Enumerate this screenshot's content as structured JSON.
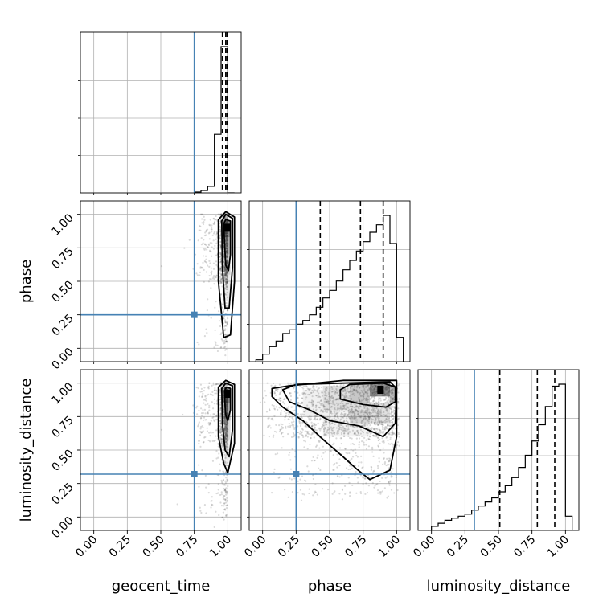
{
  "chart_data": {
    "type": "corner",
    "parameters": [
      "geocent_time",
      "phase",
      "luminosity_distance"
    ],
    "axis_range": [
      -0.1,
      1.1
    ],
    "ticks": [
      0.0,
      0.25,
      0.5,
      0.75,
      1.0
    ],
    "tick_labels": [
      "0.00",
      "0.25",
      "0.50",
      "0.75",
      "1.00"
    ],
    "grid": true,
    "truths": {
      "geocent_time": 0.75,
      "phase": 0.25,
      "luminosity_distance": 0.32
    },
    "truth_color": "#4682b4",
    "quantiles": {
      "geocent_time": [
        0.96,
        0.985,
        0.995
      ],
      "phase": [
        0.43,
        0.73,
        0.9
      ],
      "luminosity_distance": [
        0.51,
        0.79,
        0.92
      ]
    },
    "histograms": {
      "geocent_time": {
        "bin_edges": [
          0.75,
          0.8,
          0.85,
          0.9,
          0.95,
          1.0,
          1.05
        ],
        "counts": [
          0.005,
          0.015,
          0.04,
          0.36,
          0.9,
          0.0
        ]
      },
      "phase": {
        "bin_edges": [
          -0.05,
          0.0,
          0.05,
          0.1,
          0.15,
          0.2,
          0.25,
          0.3,
          0.35,
          0.4,
          0.45,
          0.5,
          0.55,
          0.6,
          0.65,
          0.7,
          0.75,
          0.8,
          0.85,
          0.9,
          0.95,
          1.0,
          1.05
        ],
        "counts": [
          0.01,
          0.04,
          0.08,
          0.11,
          0.15,
          0.17,
          0.2,
          0.22,
          0.25,
          0.29,
          0.34,
          0.38,
          0.43,
          0.49,
          0.54,
          0.59,
          0.64,
          0.69,
          0.73,
          0.78,
          0.63,
          0.13
        ]
      },
      "luminosity_distance": {
        "bin_edges": [
          0.0,
          0.05,
          0.1,
          0.15,
          0.2,
          0.25,
          0.3,
          0.35,
          0.4,
          0.45,
          0.5,
          0.55,
          0.6,
          0.65,
          0.7,
          0.75,
          0.8,
          0.85,
          0.9,
          0.95,
          1.0,
          1.05
        ],
        "counts": [
          0.02,
          0.035,
          0.05,
          0.06,
          0.07,
          0.08,
          0.1,
          0.12,
          0.14,
          0.16,
          0.19,
          0.22,
          0.26,
          0.31,
          0.37,
          0.44,
          0.52,
          0.61,
          0.71,
          0.72,
          0.07
        ]
      }
    },
    "densities": {
      "phase_vs_geocent_time": {
        "peak": [
          0.995,
          0.9
        ]
      },
      "luminosity_distance_vs_geocent_time": {
        "peak": [
          0.995,
          0.92
        ]
      },
      "luminosity_distance_vs_phase": {
        "peak": [
          0.88,
          0.95
        ]
      }
    }
  }
}
